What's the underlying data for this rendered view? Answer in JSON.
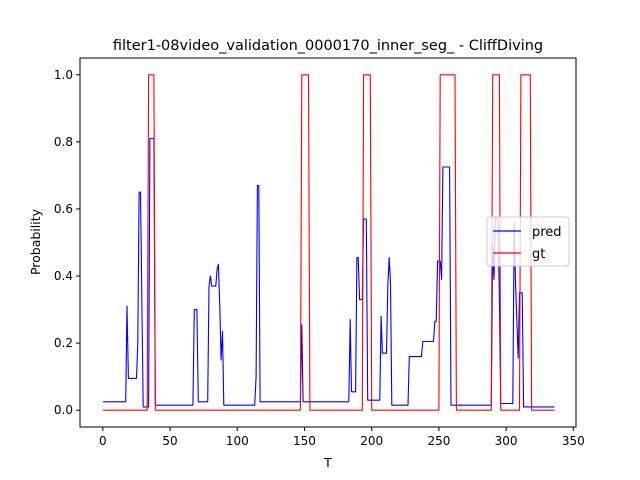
{
  "chart_data": {
    "type": "line",
    "title": "filter1-08video_validation_0000170_inner_seg_ - CliffDiving",
    "xlabel": "T",
    "ylabel": "Probability",
    "xlim": [
      -17,
      352
    ],
    "ylim": [
      -0.05,
      1.05
    ],
    "xticks": [
      0,
      50,
      100,
      150,
      200,
      250,
      300,
      350
    ],
    "xtick_labels": [
      "0",
      "50",
      "100",
      "150",
      "200",
      "250",
      "300",
      "350"
    ],
    "yticks": [
      0.0,
      0.2,
      0.4,
      0.6,
      0.8,
      1.0
    ],
    "ytick_labels": [
      "0.0",
      "0.2",
      "0.4",
      "0.6",
      "0.8",
      "1.0"
    ],
    "legend_position": "center-right",
    "grid": false,
    "series": [
      {
        "name": "pred",
        "color": "#0000ff",
        "points": [
          [
            0,
            0.025
          ],
          [
            17,
            0.025
          ],
          [
            18,
            0.31
          ],
          [
            19,
            0.095
          ],
          [
            25,
            0.095
          ],
          [
            26,
            0.2
          ],
          [
            27,
            0.65
          ],
          [
            28,
            0.65
          ],
          [
            30,
            0.01
          ],
          [
            34,
            0.01
          ],
          [
            35,
            0.81
          ],
          [
            38,
            0.81
          ],
          [
            39,
            0.015
          ],
          [
            67,
            0.015
          ],
          [
            68,
            0.3
          ],
          [
            70,
            0.3
          ],
          [
            71,
            0.025
          ],
          [
            78,
            0.025
          ],
          [
            79,
            0.37
          ],
          [
            80,
            0.4
          ],
          [
            81,
            0.37
          ],
          [
            84,
            0.37
          ],
          [
            85,
            0.42
          ],
          [
            86,
            0.435
          ],
          [
            87,
            0.31
          ],
          [
            88,
            0.15
          ],
          [
            89,
            0.235
          ],
          [
            90,
            0.015
          ],
          [
            113,
            0.015
          ],
          [
            114,
            0.1
          ],
          [
            115,
            0.67
          ],
          [
            116,
            0.67
          ],
          [
            117,
            0.025
          ],
          [
            147,
            0.025
          ],
          [
            148,
            0.255
          ],
          [
            149,
            0.025
          ],
          [
            183,
            0.025
          ],
          [
            184,
            0.27
          ],
          [
            185,
            0.055
          ],
          [
            188,
            0.055
          ],
          [
            189,
            0.455
          ],
          [
            190,
            0.455
          ],
          [
            191,
            0.33
          ],
          [
            193,
            0.33
          ],
          [
            194,
            0.57
          ],
          [
            196,
            0.57
          ],
          [
            197,
            0.03
          ],
          [
            206,
            0.03
          ],
          [
            207,
            0.28
          ],
          [
            208,
            0.17
          ],
          [
            211,
            0.17
          ],
          [
            212,
            0.37
          ],
          [
            213,
            0.455
          ],
          [
            214,
            0.38
          ],
          [
            215,
            0.015
          ],
          [
            227,
            0.015
          ],
          [
            228,
            0.16
          ],
          [
            237,
            0.16
          ],
          [
            238,
            0.205
          ],
          [
            246,
            0.205
          ],
          [
            247,
            0.265
          ],
          [
            248,
            0.265
          ],
          [
            249,
            0.445
          ],
          [
            251,
            0.445
          ],
          [
            252,
            0.39
          ],
          [
            253,
            0.725
          ],
          [
            258,
            0.725
          ],
          [
            259,
            0.015
          ],
          [
            289,
            0.015
          ],
          [
            290,
            0.495
          ],
          [
            291,
            0.39
          ],
          [
            292,
            0.575
          ],
          [
            294,
            0.57
          ],
          [
            295,
            0.33
          ],
          [
            296,
            0.02
          ],
          [
            305,
            0.02
          ],
          [
            306,
            0.56
          ],
          [
            307,
            0.38
          ],
          [
            309,
            0.155
          ],
          [
            310,
            0.35
          ],
          [
            312,
            0.35
          ],
          [
            313,
            0.01
          ],
          [
            336,
            0.01
          ]
        ]
      },
      {
        "name": "gt",
        "color": "#ff0000",
        "points": [
          [
            0,
            0.0
          ],
          [
            33,
            0.0
          ],
          [
            34,
            1.0
          ],
          [
            38,
            1.0
          ],
          [
            39,
            0.0
          ],
          [
            147,
            0.0
          ],
          [
            148,
            1.0
          ],
          [
            153,
            1.0
          ],
          [
            154,
            0.0
          ],
          [
            193,
            0.0
          ],
          [
            194,
            1.0
          ],
          [
            199,
            1.0
          ],
          [
            200,
            0.0
          ],
          [
            250,
            0.0
          ],
          [
            251,
            1.0
          ],
          [
            262,
            1.0
          ],
          [
            263,
            0.0
          ],
          [
            289,
            0.0
          ],
          [
            290,
            1.0
          ],
          [
            295,
            1.0
          ],
          [
            296,
            0.0
          ],
          [
            310,
            0.0
          ],
          [
            311,
            1.0
          ],
          [
            318,
            1.0
          ],
          [
            319,
            0.0
          ],
          [
            336,
            0.0
          ]
        ]
      }
    ]
  }
}
